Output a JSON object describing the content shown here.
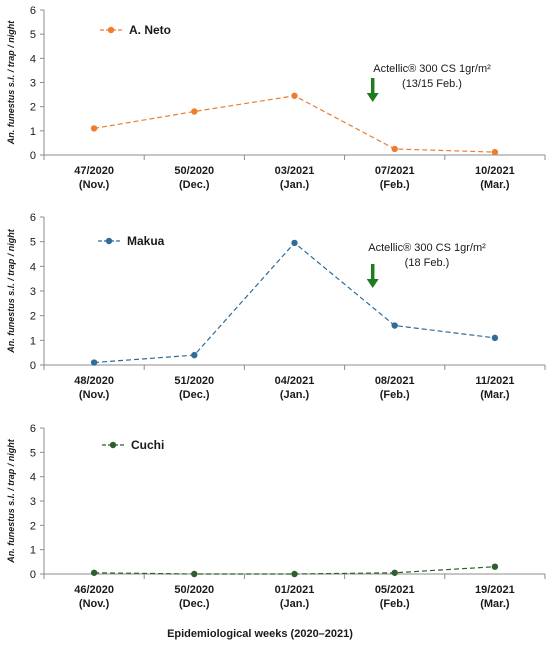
{
  "chart_data": [
    {
      "type": "line",
      "categories": [
        [
          "47/2020",
          "(Nov.)"
        ],
        [
          "50/2020",
          "(Dec.)"
        ],
        [
          "03/2021",
          "(Jan.)"
        ],
        [
          "07/2021",
          "(Feb.)"
        ],
        [
          "10/2021",
          "(Mar.)"
        ]
      ],
      "series": [
        {
          "name": "A. Neto",
          "values": [
            1.1,
            1.8,
            2.45,
            0.25,
            0.12
          ],
          "color": "#ED7D31"
        }
      ],
      "ylabel": "An. funestus s.l. / trap / night",
      "ylim": [
        0,
        6
      ],
      "yticks": [
        0,
        1,
        2,
        3,
        4,
        5,
        6
      ],
      "grid": false,
      "legend": "top-left",
      "annotation": {
        "lines": [
          "Actellic® 300 CS 1gr/m²",
          "(13/15 Feb.)"
        ],
        "arrow_color": "#1E7B1E",
        "arrow_x_index": 3
      }
    },
    {
      "type": "line",
      "categories": [
        [
          "48/2020",
          "(Nov.)"
        ],
        [
          "51/2020",
          "(Dec.)"
        ],
        [
          "04/2021",
          "(Jan.)"
        ],
        [
          "08/2021",
          "(Feb.)"
        ],
        [
          "11/2021",
          "(Mar.)"
        ]
      ],
      "series": [
        {
          "name": "Makua",
          "values": [
            0.1,
            0.4,
            4.95,
            1.6,
            1.1
          ],
          "color": "#2E6C9A"
        }
      ],
      "ylabel": "An. funestus s.l. / trap / night",
      "ylim": [
        0,
        6
      ],
      "yticks": [
        0,
        1,
        2,
        3,
        4,
        5,
        6
      ],
      "grid": false,
      "legend": "top-left",
      "annotation": {
        "lines": [
          "Actellic® 300 CS 1gr/m²",
          "(18 Feb.)"
        ],
        "arrow_color": "#1E7B1E",
        "arrow_x_index": 3
      }
    },
    {
      "type": "line",
      "categories": [
        [
          "46/2020",
          "(Nov.)"
        ],
        [
          "50/2020",
          "(Dec.)"
        ],
        [
          "01/2021",
          "(Jan.)"
        ],
        [
          "05/2021",
          "(Feb.)"
        ],
        [
          "19/2021",
          "(Mar.)"
        ]
      ],
      "series": [
        {
          "name": "Cuchi",
          "values": [
            0.05,
            0.0,
            0.0,
            0.05,
            0.3
          ],
          "color": "#2F5F2F"
        }
      ],
      "ylabel": "An. funestus s.l. / trap / night",
      "ylim": [
        0,
        6
      ],
      "yticks": [
        0,
        1,
        2,
        3,
        4,
        5,
        6
      ],
      "grid": false,
      "legend": "top-left"
    }
  ],
  "xlabel": "Epidemiological weeks (2020–2021)"
}
